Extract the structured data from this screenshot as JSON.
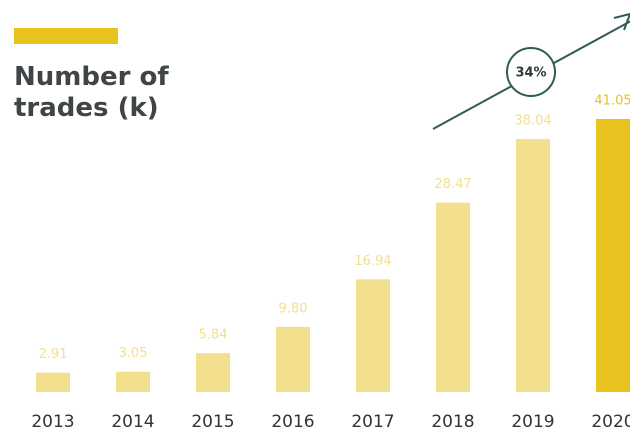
{
  "chart_data": {
    "type": "bar",
    "title": "Number of trades (k)",
    "categories": [
      "2013",
      "2014",
      "2015",
      "2016",
      "2017",
      "2018",
      "2019",
      "2020"
    ],
    "values": [
      2.91,
      3.05,
      5.84,
      9.8,
      16.94,
      28.47,
      38.04,
      41.05
    ],
    "value_labels": [
      "2.91",
      "3.05",
      "5.84",
      "9.80",
      "16.94",
      "28.47",
      "38.04",
      "41.05"
    ],
    "colors": [
      "#f3e08f",
      "#f3e08f",
      "#f3e08f",
      "#f3e08f",
      "#f3e08f",
      "#f3e08f",
      "#f3e08f",
      "#e8c21e"
    ],
    "annotation": "34%"
  }
}
